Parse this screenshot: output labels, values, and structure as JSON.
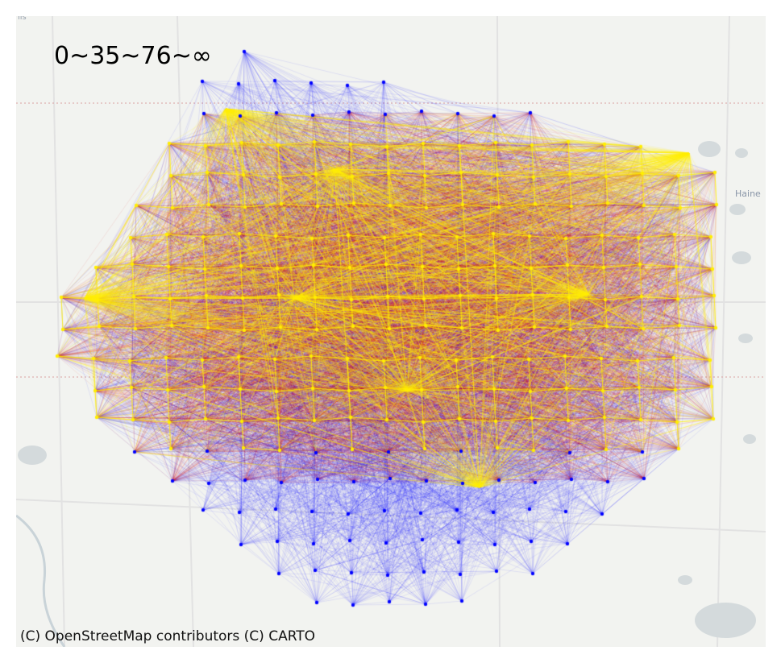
{
  "map": {
    "legend_title": "0~35~76~∞",
    "attribution": "(C) OpenStreetMap contributors (C) CARTO",
    "place_label": "Haine",
    "corner_label": "iis"
  },
  "colors": {
    "background": "#f2f3f0",
    "water": "#d4dadc",
    "roads": "#e2e2e2",
    "boundary": "#d9a0a0",
    "band_low": "#0000ff",
    "band_mid": "#e00000",
    "band_high": "#ffee00"
  },
  "bands": [
    "0",
    "35",
    "76",
    "∞"
  ]
}
